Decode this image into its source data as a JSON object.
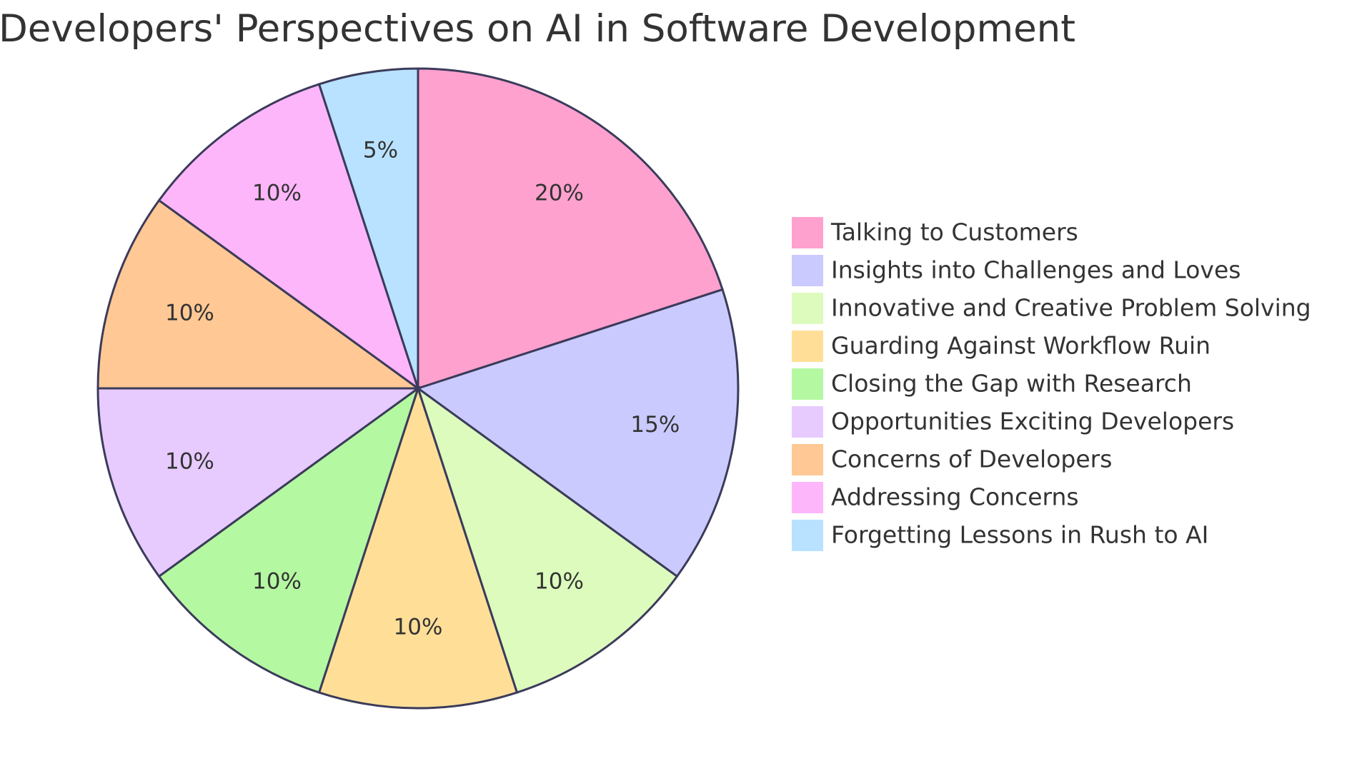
{
  "chart_data": {
    "type": "pie",
    "title": "Developers' Perspectives on AI in Software Development",
    "value_format": "percent",
    "slices": [
      {
        "label": "Talking to Customers",
        "value": 20,
        "display": "20%",
        "color": "#ffa1ce"
      },
      {
        "label": "Insights into Challenges and Loves",
        "value": 15,
        "display": "15%",
        "color": "#cacafe"
      },
      {
        "label": "Innovative and Creative Problem Solving",
        "value": 10,
        "display": "10%",
        "color": "#dcfbbd"
      },
      {
        "label": "Guarding Against Workflow Ruin",
        "value": 10,
        "display": "10%",
        "color": "#ffdf98"
      },
      {
        "label": "Closing the Gap with Research",
        "value": 10,
        "display": "10%",
        "color": "#b4f8a2"
      },
      {
        "label": "Opportunities Exciting Developers",
        "value": 10,
        "display": "10%",
        "color": "#e7cbfe"
      },
      {
        "label": "Concerns of Developers",
        "value": 10,
        "display": "10%",
        "color": "#ffc895"
      },
      {
        "label": "Addressing Concerns",
        "value": 10,
        "display": "10%",
        "color": "#feb6fb"
      },
      {
        "label": "Forgetting Lessons in Rush to AI",
        "value": 5,
        "display": "5%",
        "color": "#b8e2ff"
      }
    ],
    "legend_position": "right",
    "start_angle": "12 o'clock",
    "direction": "clockwise"
  }
}
